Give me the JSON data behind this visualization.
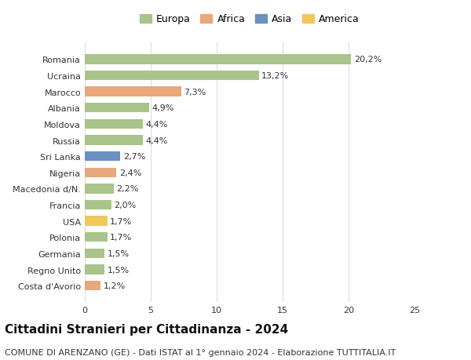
{
  "categories": [
    "Romania",
    "Ucraina",
    "Marocco",
    "Albania",
    "Moldova",
    "Russia",
    "Sri Lanka",
    "Nigeria",
    "Macedonia d/N.",
    "Francia",
    "USA",
    "Polonia",
    "Germania",
    "Regno Unito",
    "Costa d'Avorio"
  ],
  "values": [
    20.2,
    13.2,
    7.3,
    4.9,
    4.4,
    4.4,
    2.7,
    2.4,
    2.2,
    2.0,
    1.7,
    1.7,
    1.5,
    1.5,
    1.2
  ],
  "labels": [
    "20,2%",
    "13,2%",
    "7,3%",
    "4,9%",
    "4,4%",
    "4,4%",
    "2,7%",
    "2,4%",
    "2,2%",
    "2,0%",
    "1,7%",
    "1,7%",
    "1,5%",
    "1,5%",
    "1,2%"
  ],
  "continents": [
    "Europa",
    "Europa",
    "Africa",
    "Europa",
    "Europa",
    "Europa",
    "Asia",
    "Africa",
    "Europa",
    "Europa",
    "America",
    "Europa",
    "Europa",
    "Europa",
    "Africa"
  ],
  "colors": {
    "Europa": "#a8c48a",
    "Africa": "#e8a87c",
    "Asia": "#6a8fc0",
    "America": "#f0c85a"
  },
  "legend_order": [
    "Europa",
    "Africa",
    "Asia",
    "America"
  ],
  "xlim": [
    0,
    25
  ],
  "xticks": [
    0,
    5,
    10,
    15,
    20,
    25
  ],
  "title": "Cittadini Stranieri per Cittadinanza - 2024",
  "subtitle": "COMUNE DI ARENZANO (GE) - Dati ISTAT al 1° gennaio 2024 - Elaborazione TUTTITALIA.IT",
  "background_color": "#ffffff",
  "bar_height": 0.6,
  "grid_color": "#dddddd",
  "title_fontsize": 11,
  "subtitle_fontsize": 8,
  "label_fontsize": 8,
  "tick_fontsize": 8,
  "legend_fontsize": 9
}
